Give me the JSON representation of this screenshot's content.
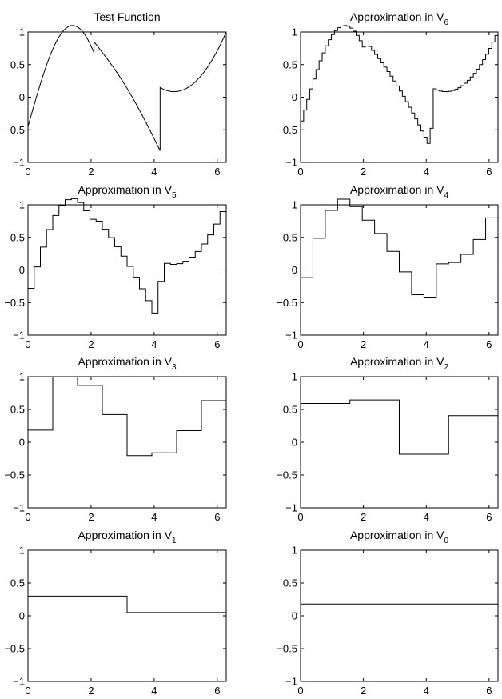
{
  "chart_data": [
    {
      "type": "line",
      "title": "Test Function",
      "title_sub": "",
      "xlim": [
        0,
        6.2832
      ],
      "ylim": [
        -1,
        1
      ],
      "xticks": [
        "0",
        "2",
        "4",
        "6"
      ],
      "yticks": [
        "1",
        "0.5",
        "0",
        "−0.5",
        "−1"
      ],
      "series": [
        {
          "kind": "function",
          "x": [],
          "y": []
        }
      ]
    },
    {
      "type": "line",
      "title": "Approximation in V",
      "title_sub": "6",
      "xlim": [
        0,
        6.2832
      ],
      "ylim": [
        -1,
        1
      ],
      "xticks": [
        "0",
        "2",
        "4",
        "6"
      ],
      "yticks": [
        "1",
        "0.5",
        "0",
        "−0.5",
        "−1"
      ],
      "series": [
        {
          "kind": "step",
          "level": 6,
          "x": [],
          "y": []
        }
      ]
    },
    {
      "type": "line",
      "title": "Approximation in V",
      "title_sub": "5",
      "xlim": [
        0,
        6.2832
      ],
      "ylim": [
        -1,
        1
      ],
      "xticks": [
        "0",
        "2",
        "4",
        "6"
      ],
      "yticks": [
        "1",
        "0.5",
        "0",
        "−0.5",
        "−1"
      ],
      "series": [
        {
          "kind": "step",
          "level": 5,
          "x": [],
          "y": []
        }
      ]
    },
    {
      "type": "line",
      "title": "Approximation in V",
      "title_sub": "4",
      "xlim": [
        0,
        6.2832
      ],
      "ylim": [
        -1,
        1
      ],
      "xticks": [
        "0",
        "2",
        "4",
        "6"
      ],
      "yticks": [
        "1",
        "0.5",
        "0",
        "−0.5",
        "−1"
      ],
      "series": [
        {
          "kind": "step",
          "level": 4,
          "x": [],
          "y": []
        }
      ]
    },
    {
      "type": "line",
      "title": "Approximation in V",
      "title_sub": "3",
      "xlim": [
        0,
        6.2832
      ],
      "ylim": [
        -1,
        1
      ],
      "xticks": [
        "0",
        "2",
        "4",
        "6"
      ],
      "yticks": [
        "1",
        "0.5",
        "0",
        "−0.5",
        "−1"
      ],
      "series": [
        {
          "kind": "step",
          "level": 3,
          "x": [],
          "y": []
        }
      ]
    },
    {
      "type": "line",
      "title": "Approximation in V",
      "title_sub": "2",
      "xlim": [
        0,
        6.2832
      ],
      "ylim": [
        -1,
        1
      ],
      "xticks": [
        "0",
        "2",
        "4",
        "6"
      ],
      "yticks": [
        "1",
        "0.5",
        "0",
        "−0.5",
        "−1"
      ],
      "series": [
        {
          "kind": "step",
          "level": 2,
          "x": [],
          "y": []
        }
      ]
    },
    {
      "type": "line",
      "title": "Approximation in V",
      "title_sub": "1",
      "xlim": [
        0,
        6.2832
      ],
      "ylim": [
        -1,
        1
      ],
      "xticks": [
        "0",
        "2",
        "4",
        "6"
      ],
      "yticks": [
        "1",
        "0.5",
        "0",
        "−0.5",
        "−1"
      ],
      "series": [
        {
          "kind": "step",
          "level": 1,
          "x": [
            0,
            3.1416,
            3.1416,
            6.2832
          ],
          "y": [
            0.3,
            0.3,
            0.05,
            0.05
          ]
        }
      ]
    },
    {
      "type": "line",
      "title": "Approximation in V",
      "title_sub": "0",
      "xlim": [
        0,
        6.2832
      ],
      "ylim": [
        -1,
        1
      ],
      "xticks": [
        "0",
        "2",
        "4",
        "6"
      ],
      "yticks": [
        "1",
        "0.5",
        "0",
        "−0.5",
        "−1"
      ],
      "series": [
        {
          "kind": "step",
          "level": 0,
          "x": [
            0,
            6.2832
          ],
          "y": [
            0.18,
            0.18
          ]
        }
      ]
    }
  ]
}
